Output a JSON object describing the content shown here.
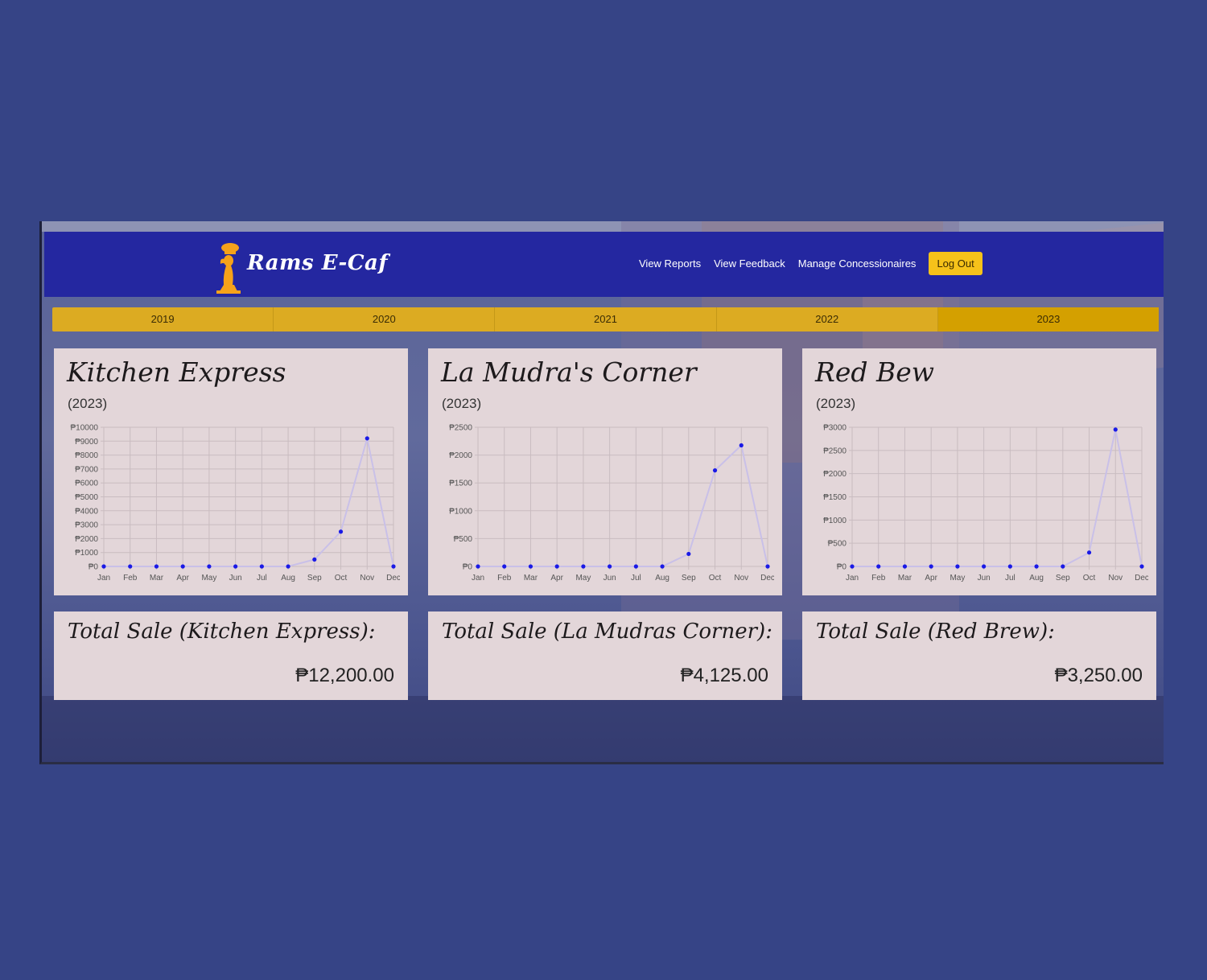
{
  "brand": {
    "name": "Rams E-Caf",
    "logo_icon": "ram-chef-icon"
  },
  "nav": {
    "links": [
      "View Reports",
      "View Feedback",
      "Manage Concessionaires"
    ],
    "logout_label": "Log Out"
  },
  "years": [
    "2019",
    "2020",
    "2021",
    "2022",
    "2023"
  ],
  "active_year": "2023",
  "colors": {
    "navbar": "#2427a0",
    "accent": "#f6c21a",
    "line": "#c9c0e8",
    "point": "#1a1ae6"
  },
  "cards": [
    {
      "title": "Kitchen Express",
      "year_label": "(2023)",
      "total_label": "Total Sale (Kitchen Express):",
      "total_value": "₱12,200.00"
    },
    {
      "title": "La Mudra's Corner",
      "year_label": "(2023)",
      "total_label": "Total Sale (La Mudras Corner):",
      "total_value": "₱4,125.00"
    },
    {
      "title": "Red Bew",
      "year_label": "(2023)",
      "total_label": "Total Sale (Red Brew):",
      "total_value": "₱3,250.00"
    }
  ],
  "chart_data": [
    {
      "type": "line",
      "categories": [
        "Jan",
        "Feb",
        "Mar",
        "Apr",
        "May",
        "Jun",
        "Jul",
        "Aug",
        "Sep",
        "Oct",
        "Nov",
        "Dec"
      ],
      "values": [
        0,
        0,
        0,
        0,
        0,
        0,
        0,
        0,
        500,
        2500,
        9200,
        0
      ],
      "ylim": [
        0,
        10000
      ],
      "yticks": [
        0,
        1000,
        2000,
        3000,
        4000,
        5000,
        6000,
        7000,
        8000,
        9000,
        10000
      ],
      "ytick_labels": [
        "₱0",
        "₱1000",
        "₱2000",
        "₱3000",
        "₱4000",
        "₱5000",
        "₱6000",
        "₱7000",
        "₱8000",
        "₱9000",
        "₱10000"
      ],
      "grid": true
    },
    {
      "type": "line",
      "categories": [
        "Jan",
        "Feb",
        "Mar",
        "Apr",
        "May",
        "Jun",
        "Jul",
        "Aug",
        "Sep",
        "Oct",
        "Nov",
        "Dec"
      ],
      "values": [
        0,
        0,
        0,
        0,
        0,
        0,
        0,
        0,
        225,
        1725,
        2175,
        0
      ],
      "ylim": [
        0,
        2500
      ],
      "yticks": [
        0,
        500,
        1000,
        1500,
        2000,
        2500
      ],
      "ytick_labels": [
        "₱0",
        "₱500",
        "₱1000",
        "₱1500",
        "₱2000",
        "₱2500"
      ],
      "grid": true
    },
    {
      "type": "line",
      "categories": [
        "Jan",
        "Feb",
        "Mar",
        "Apr",
        "May",
        "Jun",
        "Jul",
        "Aug",
        "Sep",
        "Oct",
        "Nov",
        "Dec"
      ],
      "values": [
        0,
        0,
        0,
        0,
        0,
        0,
        0,
        0,
        0,
        300,
        2950,
        0
      ],
      "ylim": [
        0,
        3000
      ],
      "yticks": [
        0,
        500,
        1000,
        1500,
        2000,
        2500,
        3000
      ],
      "ytick_labels": [
        "₱0",
        "₱500",
        "₱1000",
        "₱1500",
        "₱2000",
        "₱2500",
        "₱3000"
      ],
      "grid": true
    }
  ]
}
